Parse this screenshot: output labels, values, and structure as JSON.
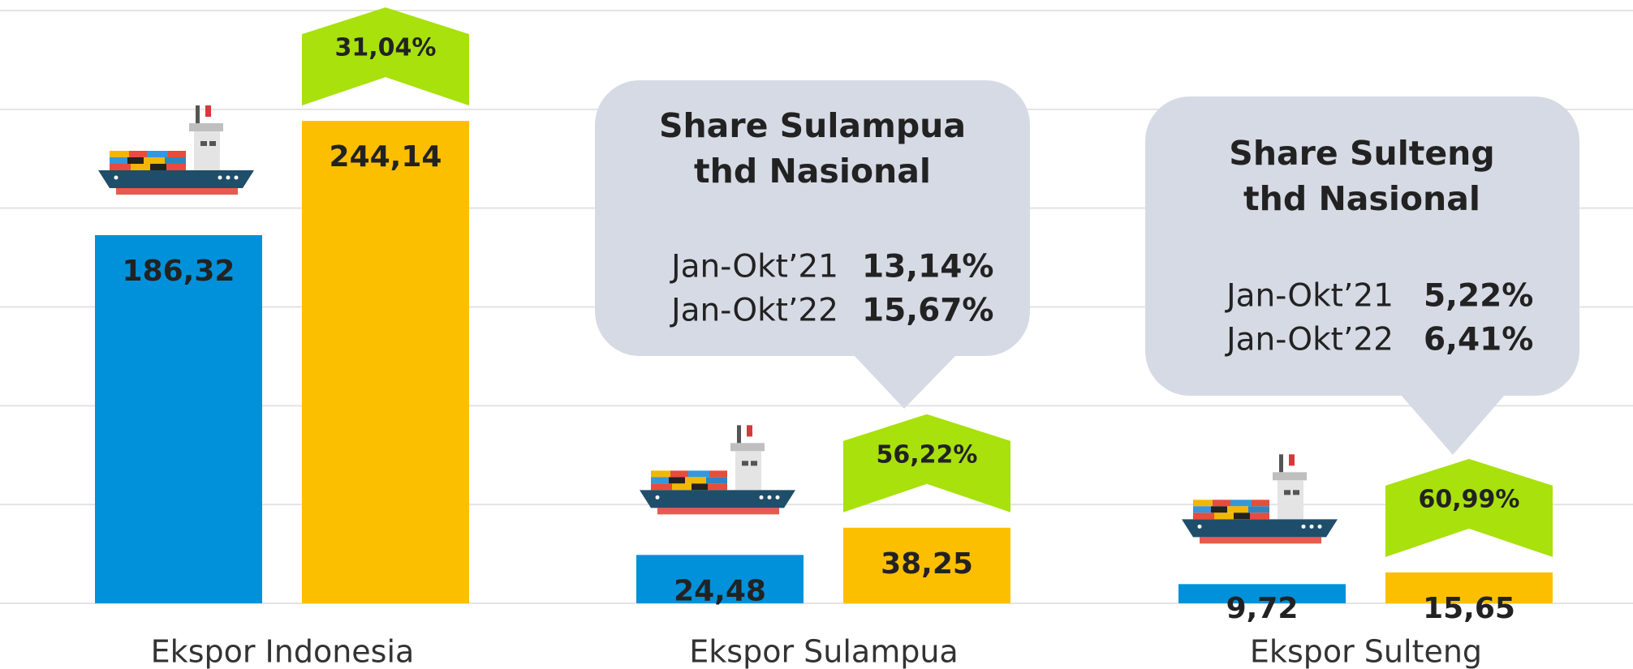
{
  "chart_data": {
    "type": "bar",
    "categories": [
      "Ekspor Indonesia",
      "Ekspor Sulampua",
      "Ekspor Sulteng"
    ],
    "series": [
      {
        "color": "#0091da",
        "values": [
          186.32,
          24.48,
          9.72
        ],
        "value_labels": [
          "186,32",
          "24,48",
          "9,72"
        ]
      },
      {
        "color": "#fcbf00",
        "values": [
          244.14,
          38.25,
          15.65
        ],
        "value_labels": [
          "244,14",
          "38,25",
          "15,65"
        ]
      }
    ],
    "growth": {
      "color": "#a8e10c",
      "values": [
        31.04,
        56.22,
        60.99
      ],
      "value_labels": [
        "31,04%",
        "56,22%",
        "60,99%"
      ]
    },
    "ylim": [
      0,
      300
    ],
    "yticks": [
      0,
      50,
      100,
      150,
      200,
      250,
      300
    ],
    "grid": true
  },
  "callouts": [
    {
      "title_lines": [
        "Share Sulampua",
        "thd Nasional"
      ],
      "rows": [
        {
          "period": "Jan-Okt’21",
          "value": "13,14%"
        },
        {
          "period": "Jan-Okt’22",
          "value": "15,67%"
        }
      ]
    },
    {
      "title_lines": [
        "Share Sulteng",
        "thd Nasional"
      ],
      "rows": [
        {
          "period": "Jan-Okt’21",
          "value": "5,22%"
        },
        {
          "period": "Jan-Okt’22",
          "value": "6,41%"
        }
      ]
    }
  ]
}
